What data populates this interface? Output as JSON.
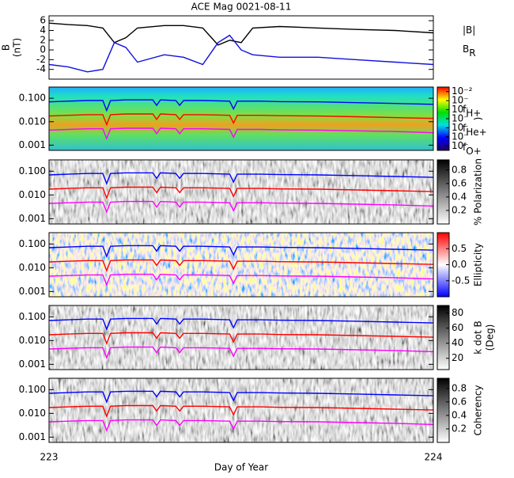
{
  "chart_data": [
    {
      "type": "line",
      "title": "ACE Mag 0021-08-11",
      "ylabel": "B",
      "yunit": "(nT)",
      "xlim": [
        223,
        224
      ],
      "ylim": [
        -6,
        7
      ],
      "yticks": [
        -4,
        -2,
        0,
        2,
        4,
        6
      ],
      "x": [
        223.0,
        223.05,
        223.1,
        223.14,
        223.17,
        223.2,
        223.23,
        223.3,
        223.35,
        223.4,
        223.44,
        223.47,
        223.5,
        223.53,
        223.6,
        223.7,
        223.8,
        223.9,
        224.0
      ],
      "series": [
        {
          "name": "|B|",
          "color": "#000000",
          "values": [
            5.5,
            5.2,
            5.0,
            4.5,
            1.5,
            2.5,
            4.5,
            5.0,
            5.0,
            4.5,
            1.0,
            2.0,
            1.5,
            4.5,
            4.8,
            4.5,
            4.2,
            4.0,
            3.5
          ]
        },
        {
          "name": "B",
          "subscript": "R",
          "color": "#1010e0",
          "values": [
            -3.0,
            -3.5,
            -4.5,
            -4.0,
            1.5,
            0.5,
            -2.5,
            -1.0,
            -1.5,
            -3.0,
            1.5,
            3.0,
            0.0,
            -1.0,
            -1.5,
            -1.5,
            -2.0,
            -2.5,
            -3.0
          ]
        }
      ]
    },
    {
      "type": "spectrogram",
      "log": true,
      "ylim": [
        0.0006,
        0.3
      ],
      "yticks": [
        {
          "value": 0.1,
          "label": "0.100"
        },
        {
          "value": 0.01,
          "label": "0.010"
        },
        {
          "value": 0.001,
          "label": "0.001"
        }
      ],
      "colorbar": "rainbow",
      "cblim": [
        -8.5,
        -1.5
      ],
      "cbticks": [
        {
          "value": -2,
          "label": "10⁻²"
        },
        {
          "value": -3,
          "label": "10⁻"
        },
        {
          "value": -4,
          "label": "10⁻"
        },
        {
          "value": -5,
          "label": "10⁻"
        },
        {
          "value": -6,
          "label": "10⁻"
        },
        {
          "value": -7,
          "label": "10⁻"
        },
        {
          "value": -8,
          "label": "10⁻"
        }
      ],
      "cblabel": ")",
      "x": [
        223.0,
        223.05,
        223.1,
        223.14,
        223.15,
        223.16,
        223.2,
        223.27,
        223.28,
        223.29,
        223.33,
        223.34,
        223.35,
        223.4,
        223.47,
        223.48,
        223.49,
        223.55,
        223.6,
        223.7,
        223.8,
        223.9,
        224.0
      ],
      "series": [
        {
          "name": "f",
          "subscript": "H+",
          "color": "#0000ff",
          "values": [
            0.07,
            0.075,
            0.08,
            0.08,
            0.03,
            0.08,
            0.085,
            0.085,
            0.05,
            0.085,
            0.08,
            0.05,
            0.08,
            0.08,
            0.075,
            0.035,
            0.075,
            0.075,
            0.072,
            0.07,
            0.065,
            0.06,
            0.055
          ]
        },
        {
          "name": "f",
          "subscript": "He+",
          "color": "#ff0000",
          "values": [
            0.0175,
            0.0188,
            0.02,
            0.02,
            0.0075,
            0.02,
            0.0213,
            0.0213,
            0.0125,
            0.0213,
            0.02,
            0.0125,
            0.02,
            0.02,
            0.0188,
            0.0088,
            0.0188,
            0.0188,
            0.018,
            0.0175,
            0.0163,
            0.015,
            0.0138
          ]
        },
        {
          "name": "f",
          "subscript": "O+",
          "color": "#ff00ff",
          "values": [
            0.0044,
            0.0047,
            0.005,
            0.005,
            0.0019,
            0.005,
            0.0053,
            0.0053,
            0.0031,
            0.0053,
            0.005,
            0.0031,
            0.005,
            0.005,
            0.0047,
            0.0022,
            0.0047,
            0.0047,
            0.0045,
            0.0044,
            0.0041,
            0.0038,
            0.0034
          ]
        }
      ]
    },
    {
      "type": "spectrogram",
      "log": true,
      "ylim": [
        0.0006,
        0.3
      ],
      "yticks": [
        {
          "value": 0.1,
          "label": "0.100"
        },
        {
          "value": 0.01,
          "label": "0.010"
        },
        {
          "value": 0.001,
          "label": "0.001"
        }
      ],
      "colorbar": "gray",
      "cblim": [
        0,
        0.95
      ],
      "cbticks": [
        0.2,
        0.4,
        0.6,
        0.8
      ],
      "cblabel": "% Polarization"
    },
    {
      "type": "spectrogram",
      "log": true,
      "ylim": [
        0.0006,
        0.3
      ],
      "yticks": [
        {
          "value": 0.1,
          "label": "0.100"
        },
        {
          "value": 0.01,
          "label": "0.010"
        },
        {
          "value": 0.001,
          "label": "0.001"
        }
      ],
      "colorbar": "bwr",
      "cblim": [
        -1,
        1
      ],
      "cbticks": [
        -0.5,
        {
          "value": 0,
          "label": "0.0"
        },
        0.5
      ],
      "cblabel": "Ellipticity"
    },
    {
      "type": "spectrogram",
      "log": true,
      "ylim": [
        0.0006,
        0.3
      ],
      "yticks": [
        {
          "value": 0.1,
          "label": "0.100"
        },
        {
          "value": 0.01,
          "label": "0.010"
        },
        {
          "value": 0.001,
          "label": "0.001"
        }
      ],
      "colorbar": "gray",
      "cblim": [
        5,
        90
      ],
      "cbticks": [
        20,
        40,
        60,
        80
      ],
      "cblabel": "k dot B",
      "cbunit": "(Deg)"
    },
    {
      "type": "spectrogram",
      "log": true,
      "ylim": [
        0.0006,
        0.3
      ],
      "yticks": [
        {
          "value": 0.1,
          "label": "0.100"
        },
        {
          "value": 0.01,
          "label": "0.010"
        },
        {
          "value": 0.001,
          "label": "0.001"
        }
      ],
      "colorbar": "gray",
      "cblim": [
        0,
        0.95
      ],
      "cbticks": [
        0.2,
        0.4,
        0.6,
        0.8
      ],
      "cblabel": "Coherency",
      "xlim": [
        223,
        224
      ],
      "xticks": [
        223,
        224
      ],
      "xlabel": "Day of Year"
    }
  ]
}
